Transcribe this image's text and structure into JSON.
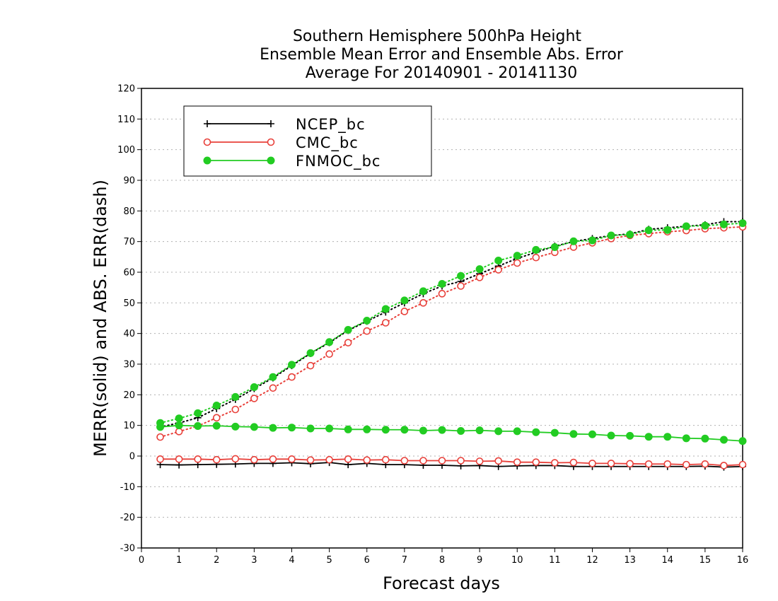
{
  "chart_data": {
    "type": "line",
    "title": [
      "Southern Hemisphere 500hPa Height",
      "Ensemble Mean Error and Ensemble Abs. Error",
      "Average For 20140901 - 20141130"
    ],
    "xlabel": "Forecast days",
    "ylabel": "MERR(solid) and ABS. ERR(dash)",
    "xlim": [
      0,
      16
    ],
    "ylim": [
      -30,
      120
    ],
    "xticks": [
      "0",
      "1",
      "2",
      "3",
      "4",
      "5",
      "6",
      "7",
      "8",
      "9",
      "10",
      "11",
      "12",
      "13",
      "14",
      "15",
      "16"
    ],
    "yticks": [
      "120",
      "110",
      "100",
      "90",
      "80",
      "70",
      "60",
      "50",
      "40",
      "30",
      "20",
      "10",
      "0",
      "-10",
      "-20",
      "-30"
    ],
    "grid": true,
    "legend_position": "top-left",
    "x": [
      0.5,
      1,
      1.5,
      2,
      2.5,
      3,
      3.5,
      4,
      4.5,
      5,
      5.5,
      6,
      6.5,
      7,
      7.5,
      8,
      8.5,
      9,
      9.5,
      10,
      10.5,
      11,
      11.5,
      12,
      12.5,
      13,
      13.5,
      14,
      14.5,
      15,
      15.5,
      16
    ],
    "series": [
      {
        "name": "NCEP_bc",
        "color": "#000000",
        "marker": "plus",
        "merr": [
          -2.8,
          -2.9,
          -2.8,
          -2.7,
          -2.6,
          -2.4,
          -2.4,
          -2.2,
          -2.5,
          -2.1,
          -2.8,
          -2.4,
          -2.8,
          -2.8,
          -3.0,
          -3.0,
          -3.2,
          -3.1,
          -3.4,
          -3.2,
          -3.1,
          -3.1,
          -3.4,
          -3.4,
          -3.4,
          -3.4,
          -3.4,
          -3.4,
          -3.4,
          -3.3,
          -3.6,
          -3.4
        ],
        "abserr": [
          9.5,
          10.8,
          12.5,
          15.5,
          18.5,
          22.0,
          25.5,
          29.5,
          33.5,
          37.0,
          41.0,
          44.0,
          47.0,
          50.0,
          53.0,
          55.5,
          57.0,
          59.5,
          62.0,
          64.5,
          66.5,
          68.5,
          70.0,
          71.0,
          72.0,
          72.5,
          74.0,
          74.5,
          75.0,
          75.5,
          76.5,
          76.5
        ]
      },
      {
        "name": "CMC_bc",
        "color": "#e8403a",
        "marker": "open-circle",
        "merr": [
          -1.0,
          -1.0,
          -1.0,
          -1.2,
          -0.9,
          -1.2,
          -1.0,
          -1.0,
          -1.3,
          -1.2,
          -1.0,
          -1.3,
          -1.2,
          -1.5,
          -1.5,
          -1.5,
          -1.5,
          -1.7,
          -1.6,
          -2.0,
          -2.0,
          -2.2,
          -2.1,
          -2.4,
          -2.4,
          -2.5,
          -2.6,
          -2.6,
          -2.8,
          -2.6,
          -3.1,
          -2.8
        ],
        "abserr": [
          6.2,
          8.0,
          9.8,
          12.5,
          15.2,
          18.8,
          22.2,
          25.8,
          29.5,
          33.3,
          37.0,
          40.8,
          43.5,
          47.2,
          50.0,
          53.0,
          55.5,
          58.3,
          60.8,
          63.0,
          64.8,
          66.5,
          68.2,
          69.6,
          71.0,
          72.0,
          72.6,
          73.2,
          73.6,
          74.2,
          74.5,
          74.8
        ]
      },
      {
        "name": "FNMOC_bc",
        "color": "#22cc22",
        "marker": "filled-circle",
        "merr": [
          9.5,
          10.0,
          9.8,
          9.9,
          9.6,
          9.5,
          9.2,
          9.3,
          9.0,
          9.0,
          8.7,
          8.7,
          8.6,
          8.6,
          8.3,
          8.5,
          8.2,
          8.4,
          8.1,
          8.1,
          7.8,
          7.6,
          7.2,
          7.1,
          6.7,
          6.6,
          6.3,
          6.3,
          5.8,
          5.7,
          5.3,
          4.9
        ],
        "abserr": [
          10.8,
          12.3,
          14.0,
          16.5,
          19.3,
          22.5,
          25.8,
          29.8,
          33.6,
          37.2,
          41.2,
          44.2,
          48.0,
          50.8,
          53.8,
          56.2,
          58.8,
          61.0,
          63.8,
          65.4,
          67.3,
          68.2,
          70.1,
          70.4,
          72.0,
          72.3,
          73.7,
          73.8,
          75.0,
          75.2,
          75.6,
          76.0
        ]
      }
    ]
  }
}
